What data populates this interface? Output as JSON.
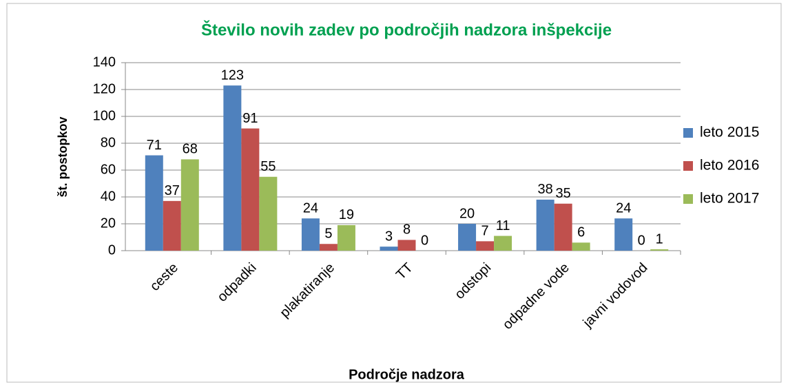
{
  "chart_data": {
    "type": "bar",
    "title": "Število novih zadev po področjih nadzora inšpekcije",
    "x_label": "Področje nadzora",
    "y_label": "št. postopkov",
    "categories": [
      "ceste",
      "odpadki",
      "plakatiranje",
      "TT",
      "odstopi",
      "odpadne vode",
      "javni vodovod"
    ],
    "series": [
      {
        "name": "leto 2015",
        "color": "#4f81bd",
        "values": [
          71,
          123,
          24,
          3,
          20,
          38,
          24
        ]
      },
      {
        "name": "leto 2016",
        "color": "#c0504d",
        "values": [
          37,
          91,
          5,
          8,
          7,
          35,
          0
        ]
      },
      {
        "name": "leto 2017",
        "color": "#9bbb59",
        "values": [
          68,
          55,
          19,
          0,
          11,
          6,
          1
        ]
      }
    ],
    "ylim": [
      0,
      140
    ],
    "yticks": [
      0,
      20,
      40,
      60,
      80,
      100,
      120,
      140
    ],
    "grid": true,
    "legend": "right"
  }
}
